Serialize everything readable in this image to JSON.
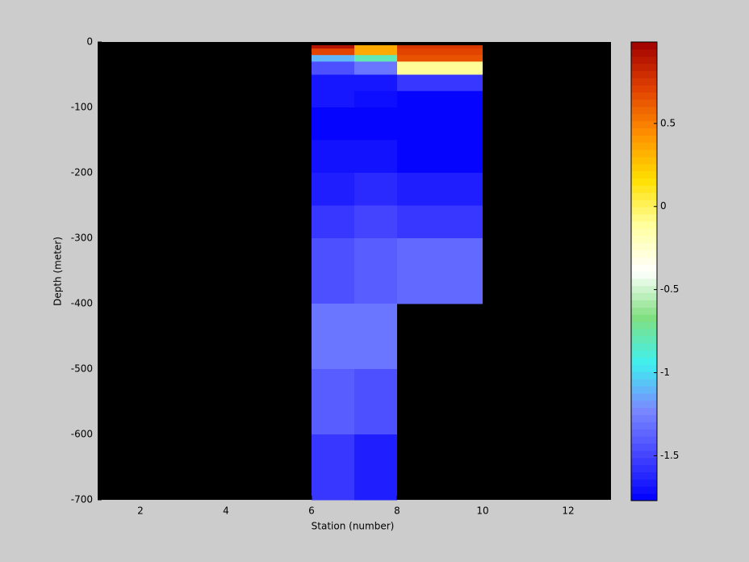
{
  "chart_data": {
    "type": "heatmap",
    "x_label": "Station (number)",
    "y_label": "Depth (meter)",
    "xlim": [
      1,
      13
    ],
    "xticks": [
      2,
      4,
      6,
      8,
      10,
      12
    ],
    "ylim": [
      -700,
      0
    ],
    "yticks": [
      -700,
      -600,
      -500,
      -400,
      -300,
      -200,
      -100,
      0
    ],
    "x_edges": [
      6,
      7,
      8,
      10
    ],
    "y_edges": [
      -5,
      -10,
      -20,
      -30,
      -50,
      -75,
      -100,
      -150,
      -200,
      -250,
      -300,
      -400,
      -500,
      -600,
      -700
    ],
    "z": [
      [
        0.9,
        0.35,
        0.75
      ],
      [
        0.7,
        0.35,
        0.7
      ],
      [
        -1.1,
        -0.8,
        0.65
      ],
      [
        -1.45,
        -1.3,
        -0.1
      ],
      [
        -1.68,
        -1.68,
        -1.55
      ],
      [
        -1.68,
        -1.72,
        -1.75
      ],
      [
        -1.75,
        -1.75,
        -1.75
      ],
      [
        -1.7,
        -1.7,
        -1.75
      ],
      [
        -1.65,
        -1.6,
        -1.65
      ],
      [
        -1.55,
        -1.5,
        -1.55
      ],
      [
        -1.45,
        -1.4,
        -1.35
      ],
      [
        -1.3,
        -1.3,
        null
      ],
      [
        -1.4,
        -1.45,
        null
      ],
      [
        -1.55,
        -1.65,
        null
      ]
    ],
    "clim": [
      -1.77,
      0.99
    ],
    "cticks": [
      -1.5,
      -1,
      -0.5,
      0,
      0.5
    ],
    "colormap": [
      "#0000ff",
      "#4545ff",
      "#7a8aff",
      "#40f0f0",
      "#80e080",
      "#ffffff",
      "#ffffa0",
      "#ffe000",
      "#ff9000",
      "#e04000",
      "#a00000"
    ],
    "background": "#000000"
  }
}
